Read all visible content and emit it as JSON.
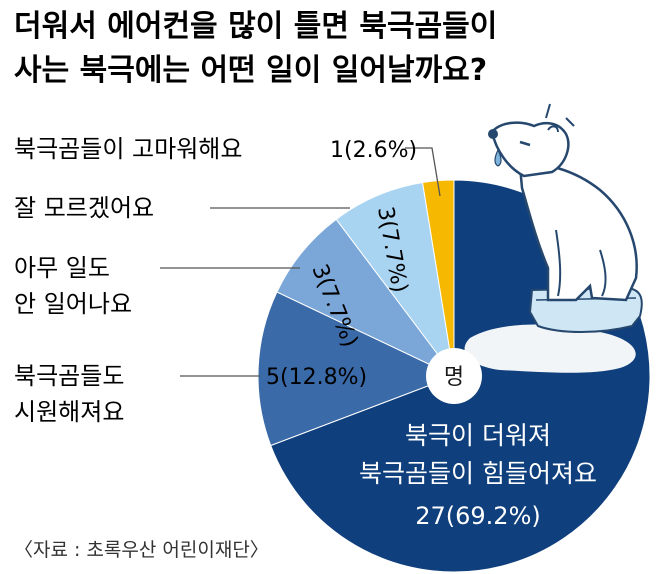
{
  "chart_data": {
    "type": "pie",
    "title_lines": [
      "더워서 에어컨을 많이 틀면 북극곰들이",
      "사는 북극에는 어떤 일이 일어날까요?"
    ],
    "center_unit": "명",
    "source": "〈자료 : 초록우산 어린이재단〉",
    "slices": [
      {
        "label_lines": [
          "북극이 더워져",
          "북극곰들이 힘들어져요"
        ],
        "value": 27,
        "percent": "69.2%",
        "value_text": "27(69.2%)",
        "color": "#0f3f7c"
      },
      {
        "label_lines": [
          "북극곰들도",
          "시원해져요"
        ],
        "value": 5,
        "percent": "12.8%",
        "value_text": "5(12.8%)",
        "color": "#3a6aa8"
      },
      {
        "label_lines": [
          "아무 일도",
          "안 일어나요"
        ],
        "value": 3,
        "percent": "7.7%",
        "value_text": "3(7.7%)",
        "color": "#7aa6d8"
      },
      {
        "label_lines": [
          "잘 모르겠어요"
        ],
        "value": 3,
        "percent": "7.7%",
        "value_text": "3(7.7%)",
        "color": "#a8d4f2"
      },
      {
        "label_lines": [
          "북극곰들이 고마워해요"
        ],
        "value": 1,
        "percent": "2.6%",
        "value_text": "1(2.6%)",
        "color": "#f6b800"
      }
    ]
  },
  "illustration": {
    "name": "polar-bear-on-ice-floe"
  }
}
